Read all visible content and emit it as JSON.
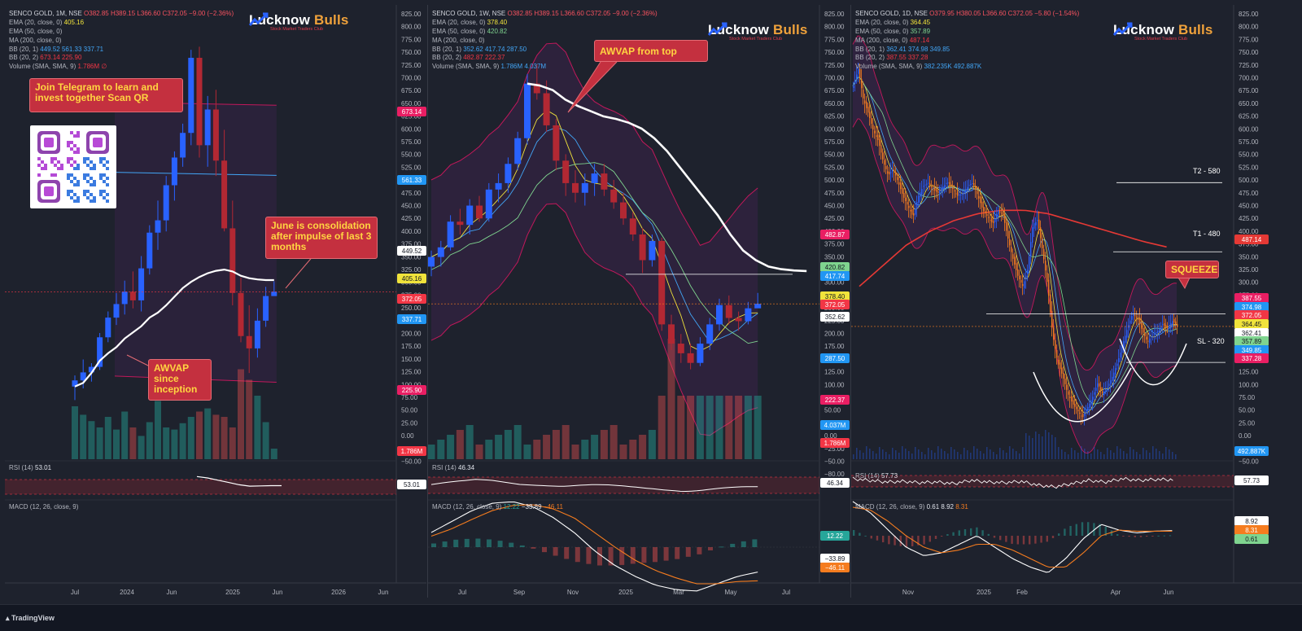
{
  "brand": {
    "name_a": "Lucknow ",
    "name_b": "Bulls",
    "tagline": "Stock Market Traders Club"
  },
  "footer": {
    "label": "TradingView"
  },
  "colors": {
    "bull": "#2962ff",
    "bear": "#b22833",
    "white": "#ffffff",
    "orange": "#f57c1f",
    "ema20": "#f0e33b",
    "ema50": "#7fd48f",
    "bbmid": "#42a5f5",
    "bbband": "#c2185b",
    "ma200": "#e53935",
    "callout": "#c4303f"
  },
  "panels": [
    {
      "id": "monthly",
      "legend": {
        "title": "SENCO GOLD, 1M, NSE",
        "ohlc": "O382.85  H389.15  L366.60  C372.05  −9.00 (−2.36%)",
        "ema20": "EMA (20, close, 0)",
        "ema20_val": "405.16",
        "ema50": "EMA (50, close, 0)",
        "ma200": "MA (200, close, 0)",
        "bb1": "BB (20, 1)",
        "bb1_vals": "449.52  561.33  337.71",
        "bb2": "BB (20, 2)",
        "bb2_vals": "673.14  225.90",
        "volume": "Volume (SMA, SMA, 9)",
        "volume_val": "1.786M  ∅"
      },
      "rsi_label": "RSI (14)",
      "rsi_val": "53.01",
      "macd_label": "MACD (12, 26, close, 9)",
      "callouts": [
        {
          "id": "telegram",
          "text": "Join Telegram to learn and invest together Scan QR"
        },
        {
          "id": "june",
          "text": "June is consolidation after impulse of last 3 months"
        },
        {
          "id": "awvap",
          "text": "AWVAP since inception"
        }
      ],
      "badges": [
        {
          "v": "673.14",
          "bg": "#e91e63",
          "fg": "#ffffff"
        },
        {
          "v": "561.33",
          "bg": "#2196f3",
          "fg": "#ffffff"
        },
        {
          "v": "449.52",
          "bg": "#ffffff",
          "fg": "#131722"
        },
        {
          "v": "405.16",
          "bg": "#f0e33b",
          "fg": "#131722"
        },
        {
          "v": "372.05",
          "bg": "#f23645",
          "fg": "#ffffff"
        },
        {
          "v": "337.71",
          "bg": "#2196f3",
          "fg": "#ffffff"
        },
        {
          "v": "225.90",
          "bg": "#e91e63",
          "fg": "#ffffff"
        },
        {
          "v": "1.786M",
          "bg": "#f23645",
          "fg": "#ffffff"
        },
        {
          "v": "53.01",
          "bg": "#ffffff",
          "fg": "#131722"
        }
      ]
    },
    {
      "id": "weekly",
      "legend": {
        "title": "SENCO GOLD, 1W, NSE",
        "ohlc": "O382.85  H389.15  L366.60  C372.05  −9.00 (−2.36%)",
        "ema20": "EMA (20, close, 0)",
        "ema20_val": "378.40",
        "ema50": "EMA (50, close, 0)",
        "ema50_val": "420.82",
        "ma200": "MA (200, close, 0)",
        "bb1": "BB (20, 1)",
        "bb1_vals": "352.62  417.74  287.50",
        "bb2": "BB (20, 2)",
        "bb2_vals": "482.87  222.37",
        "volume": "Volume (SMA, SMA, 9)",
        "volume_val": "1.786M  4.037M"
      },
      "rsi_label": "RSI (14)",
      "rsi_val": "46.34",
      "macd_label": "MACD (12, 26, close, 9)",
      "macd_vals": {
        "hist": "12.22",
        "macd": "−33.89",
        "signal": "−46.11"
      },
      "callouts": [
        {
          "id": "awvap-top",
          "text": "AWVAP from top"
        }
      ],
      "badges": [
        {
          "v": "482.87",
          "bg": "#e91e63",
          "fg": "#ffffff"
        },
        {
          "v": "420.82",
          "bg": "#7fd48f",
          "fg": "#131722"
        },
        {
          "v": "417.74",
          "bg": "#2196f3",
          "fg": "#ffffff"
        },
        {
          "v": "378.40",
          "bg": "#f0e33b",
          "fg": "#131722"
        },
        {
          "v": "372.05",
          "bg": "#f23645",
          "fg": "#ffffff"
        },
        {
          "v": "352.62",
          "bg": "#ffffff",
          "fg": "#131722"
        },
        {
          "v": "287.50",
          "bg": "#2196f3",
          "fg": "#ffffff"
        },
        {
          "v": "222.37",
          "bg": "#e91e63",
          "fg": "#ffffff"
        },
        {
          "v": "4.037M",
          "bg": "#2196f3",
          "fg": "#ffffff"
        },
        {
          "v": "1.786M",
          "bg": "#f23645",
          "fg": "#ffffff"
        },
        {
          "v": "46.34",
          "bg": "#ffffff",
          "fg": "#131722"
        },
        {
          "v": "12.22",
          "bg": "#26a69a",
          "fg": "#ffffff"
        },
        {
          "v": "−33.89",
          "bg": "#ffffff",
          "fg": "#131722"
        },
        {
          "v": "−46.11",
          "bg": "#f57c1f",
          "fg": "#ffffff"
        }
      ]
    },
    {
      "id": "daily",
      "legend": {
        "title": "SENCO GOLD, 1D, NSE",
        "ohlc": "O379.95  H380.05  L366.60  C372.05  −5.80 (−1.54%)",
        "ema20": "EMA (20, close, 0)",
        "ema20_val": "364.45",
        "ema50": "EMA (50, close, 0)",
        "ema50_val": "357.89",
        "ma200": "MA (200, close, 0)",
        "ma200_val": "487.14",
        "bb1": "BB (20, 1)",
        "bb1_vals": "362.41  374.98  349.85",
        "bb2": "BB (20, 2)",
        "bb2_vals": "387.55  337.28",
        "volume": "Volume (SMA, SMA, 9)",
        "volume_val": "382.235K  492.887K"
      },
      "rsi_label": "RSI (14)",
      "rsi_val": "57.73",
      "macd_label": "MACD (12, 26, close, 9)",
      "macd_vals": {
        "hist": "0.61",
        "macd": "8.92",
        "signal": "8.31"
      },
      "callouts": [
        {
          "id": "squeeze",
          "text": "SQUEEZE"
        }
      ],
      "levels": [
        {
          "id": "t2",
          "text": "T2 - 580"
        },
        {
          "id": "t1",
          "text": "T1 - 480"
        },
        {
          "id": "sl",
          "text": "SL - 320"
        }
      ],
      "badges": [
        {
          "v": "487.14",
          "bg": "#e53935",
          "fg": "#ffffff"
        },
        {
          "v": "387.55",
          "bg": "#e91e63",
          "fg": "#ffffff"
        },
        {
          "v": "374.98",
          "bg": "#2196f3",
          "fg": "#ffffff"
        },
        {
          "v": "372.05",
          "bg": "#f23645",
          "fg": "#ffffff"
        },
        {
          "v": "364.45",
          "bg": "#f0e33b",
          "fg": "#131722"
        },
        {
          "v": "362.41",
          "bg": "#ffffff",
          "fg": "#131722"
        },
        {
          "v": "357.89",
          "bg": "#7fd48f",
          "fg": "#131722"
        },
        {
          "v": "349.85",
          "bg": "#2196f3",
          "fg": "#ffffff"
        },
        {
          "v": "337.28",
          "bg": "#e91e63",
          "fg": "#ffffff"
        },
        {
          "v": "492.887K",
          "bg": "#2196f3",
          "fg": "#ffffff"
        },
        {
          "v": "57.73",
          "bg": "#ffffff",
          "fg": "#131722"
        },
        {
          "v": "8.92",
          "bg": "#ffffff",
          "fg": "#131722"
        },
        {
          "v": "8.31",
          "bg": "#f57c1f",
          "fg": "#ffffff"
        },
        {
          "v": "0.61",
          "bg": "#7fd48f",
          "fg": "#131722"
        }
      ]
    }
  ],
  "chart_data": [
    {
      "type": "candlestick",
      "title": "SENCO GOLD, 1M, NSE",
      "price_axis_ticks": [
        "825.00",
        "800.00",
        "775.00",
        "750.00",
        "725.00",
        "700.00",
        "675.00",
        "650.00",
        "625.00",
        "600.00",
        "575.00",
        "550.00",
        "525.00",
        "500.00",
        "475.00",
        "450.00",
        "425.00",
        "400.00",
        "375.00",
        "350.00",
        "325.00",
        "300.00",
        "275.00",
        "250.00",
        "225.00",
        "200.00",
        "175.00",
        "150.00",
        "125.00",
        "100.00",
        "75.00",
        "50.00",
        "25.00",
        "0.00",
        "−25.00",
        "−50.00"
      ],
      "time_axis_ticks": [
        "Jul",
        "2024",
        "Jun",
        "2025",
        "Jun",
        "2026",
        "Jun"
      ],
      "ylim": [
        100,
        830
      ],
      "candles": [
        [
          218,
          236,
          196,
          228
        ],
        [
          228,
          262,
          215,
          241
        ],
        [
          241,
          256,
          226,
          250
        ],
        [
          250,
          305,
          245,
          298
        ],
        [
          298,
          340,
          290,
          330
        ],
        [
          330,
          370,
          318,
          352
        ],
        [
          352,
          390,
          335,
          372
        ],
        [
          372,
          405,
          345,
          358
        ],
        [
          358,
          430,
          340,
          410
        ],
        [
          410,
          480,
          400,
          468
        ],
        [
          468,
          520,
          440,
          488
        ],
        [
          488,
          560,
          470,
          545
        ],
        [
          545,
          600,
          520,
          590
        ],
        [
          590,
          645,
          575,
          630
        ],
        [
          630,
          765,
          610,
          752
        ],
        [
          752,
          770,
          590,
          610
        ],
        [
          610,
          690,
          575,
          668
        ],
        [
          668,
          700,
          560,
          585
        ],
        [
          585,
          635,
          470,
          475
        ],
        [
          475,
          520,
          350,
          370
        ],
        [
          370,
          395,
          290,
          300
        ],
        [
          300,
          350,
          240,
          280
        ],
        [
          280,
          345,
          265,
          325
        ],
        [
          325,
          380,
          315,
          365
        ],
        [
          365,
          389,
          366,
          372
        ]
      ],
      "awvap": [
        218,
        224,
        240,
        260,
        272,
        282,
        296,
        306,
        316,
        330,
        338,
        350,
        364,
        378,
        388,
        396,
        402,
        406,
        408,
        405,
        398,
        394,
        392,
        391,
        391
      ],
      "bb_upper": [
        680,
        677,
        675
      ],
      "bb_mid": [
        566,
        562,
        561
      ],
      "bb_lower": [
        235,
        228,
        225
      ],
      "rsi": [
        85,
        80,
        72,
        64,
        56,
        51,
        52,
        53,
        53
      ],
      "volume_relative": [
        0.5,
        0.42,
        0.36,
        0.3,
        0.4,
        0.28,
        0.45,
        0.3,
        0.22,
        0.35,
        0.55,
        0.3,
        0.28,
        0.34,
        0.4,
        0.45,
        0.48,
        0.42,
        0.4,
        0.3,
        0.85,
        0.75,
        0.6,
        0.35,
        0.1
      ]
    },
    {
      "type": "candlestick",
      "title": "SENCO GOLD, 1W, NSE",
      "price_axis_ticks": [
        "825.00",
        "800.00",
        "775.00",
        "750.00",
        "725.00",
        "700.00",
        "675.00",
        "650.00",
        "625.00",
        "600.00",
        "575.00",
        "550.00",
        "525.00",
        "500.00",
        "475.00",
        "450.00",
        "425.00",
        "400.00",
        "375.00",
        "350.00",
        "325.00",
        "300.00",
        "275.00",
        "250.00",
        "225.00",
        "200.00",
        "175.00",
        "150.00",
        "125.00",
        "100.00",
        "75.00",
        "50.00",
        "25.00",
        "0.00",
        "−25.00",
        "−50.00",
        "−80.00"
      ],
      "time_axis_ticks": [
        "Jul",
        "Sep",
        "Nov",
        "2025",
        "Mar",
        "May",
        "Jul"
      ],
      "ylim": [
        130,
        830
      ],
      "candles": [
        [
          430,
          455,
          415,
          445
        ],
        [
          445,
          470,
          430,
          460
        ],
        [
          460,
          510,
          455,
          500
        ],
        [
          500,
          520,
          480,
          495
        ],
        [
          495,
          535,
          480,
          525
        ],
        [
          525,
          540,
          500,
          505
        ],
        [
          505,
          560,
          500,
          550
        ],
        [
          550,
          575,
          530,
          560
        ],
        [
          560,
          600,
          545,
          590
        ],
        [
          590,
          640,
          580,
          630
        ],
        [
          630,
          730,
          620,
          715
        ],
        [
          715,
          745,
          690,
          700
        ],
        [
          700,
          720,
          640,
          650
        ],
        [
          650,
          660,
          580,
          595
        ],
        [
          595,
          605,
          540,
          560
        ],
        [
          560,
          580,
          530,
          545
        ],
        [
          545,
          575,
          525,
          560
        ],
        [
          560,
          590,
          540,
          575
        ],
        [
          575,
          590,
          540,
          550
        ],
        [
          550,
          565,
          520,
          530
        ],
        [
          530,
          545,
          495,
          505
        ],
        [
          505,
          515,
          470,
          480
        ],
        [
          480,
          490,
          420,
          440
        ],
        [
          440,
          480,
          430,
          470
        ],
        [
          470,
          475,
          330,
          340
        ],
        [
          340,
          355,
          300,
          310
        ],
        [
          310,
          325,
          280,
          295
        ],
        [
          295,
          310,
          270,
          280
        ],
        [
          280,
          320,
          275,
          310
        ],
        [
          310,
          350,
          300,
          340
        ],
        [
          340,
          380,
          330,
          370
        ],
        [
          370,
          385,
          340,
          350
        ],
        [
          350,
          360,
          330,
          345
        ],
        [
          345,
          375,
          340,
          365
        ],
        [
          365,
          389,
          366,
          372
        ]
      ],
      "awvap": [
        715,
        712,
        705,
        690,
        680,
        672,
        664,
        660,
        654,
        645,
        630,
        610,
        585,
        560,
        535,
        510,
        480,
        455,
        440,
        430,
        426,
        424,
        423
      ],
      "rsi": [
        52,
        58,
        62,
        66,
        64,
        58,
        52,
        50,
        48,
        47,
        50,
        52,
        51,
        48,
        44,
        40,
        36,
        33,
        35,
        40,
        44,
        46,
        46
      ],
      "macd": [
        20,
        35,
        50,
        60,
        62,
        55,
        40,
        20,
        -5,
        -25,
        -40,
        -52,
        -58,
        -60,
        -50,
        -40,
        -34
      ],
      "signal": [
        15,
        25,
        38,
        50,
        57,
        58,
        52,
        40,
        20,
        0,
        -18,
        -32,
        -42,
        -50,
        -50,
        -47,
        -46
      ]
    },
    {
      "type": "candlestick",
      "title": "SENCO GOLD, 1D, NSE",
      "price_axis_ticks": [
        "825.00",
        "800.00",
        "775.00",
        "750.00",
        "725.00",
        "700.00",
        "675.00",
        "650.00",
        "625.00",
        "600.00",
        "575.00",
        "550.00",
        "525.00",
        "500.00",
        "475.00",
        "450.00",
        "425.00",
        "400.00",
        "375.00",
        "350.00",
        "325.00",
        "300.00",
        "275.00",
        "250.00",
        "225.00",
        "200.00",
        "175.00",
        "150.00",
        "125.00",
        "100.00",
        "75.00",
        "50.00",
        "25.00",
        "0.00",
        "−25.00",
        "−50.00"
      ],
      "time_axis_ticks": [
        "Nov",
        "2025",
        "Feb",
        "Apr",
        "Jun"
      ],
      "ylim": [
        180,
        830
      ],
      "closes": [
        720,
        745,
        700,
        680,
        655,
        640,
        610,
        590,
        600,
        580,
        560,
        545,
        530,
        560,
        575,
        580,
        570,
        565,
        575,
        580,
        570,
        560,
        565,
        575,
        580,
        560,
        540,
        530,
        520,
        540,
        535,
        500,
        470,
        445,
        430,
        455,
        520,
        525,
        480,
        430,
        360,
        320,
        300,
        275,
        260,
        250,
        240,
        255,
        270,
        290,
        275,
        285,
        300,
        320,
        345,
        370,
        390,
        385,
        365,
        350,
        360,
        365,
        375,
        370,
        380,
        372
      ],
      "ma200": [
        430,
        460,
        490,
        510,
        525,
        535,
        540,
        540,
        535,
        525,
        515,
        505,
        495,
        487
      ],
      "levels": {
        "t2": 580,
        "t1": 480,
        "sl": 320,
        "resistance": 390
      },
      "rsi": [
        60,
        55,
        50,
        52,
        48,
        50,
        45,
        55,
        50,
        48,
        52,
        40,
        35,
        45,
        55,
        50,
        60,
        55,
        58,
        57
      ],
      "macd": [
        60,
        40,
        10,
        -20,
        -35,
        -30,
        -15,
        0,
        -20,
        -40,
        -55,
        -65,
        -40,
        -5,
        20,
        10,
        5,
        8,
        9
      ],
      "signal": [
        50,
        45,
        25,
        0,
        -20,
        -30,
        -25,
        -15,
        -15,
        -25,
        -40,
        -55,
        -55,
        -30,
        0,
        10,
        8,
        8,
        8
      ]
    }
  ]
}
